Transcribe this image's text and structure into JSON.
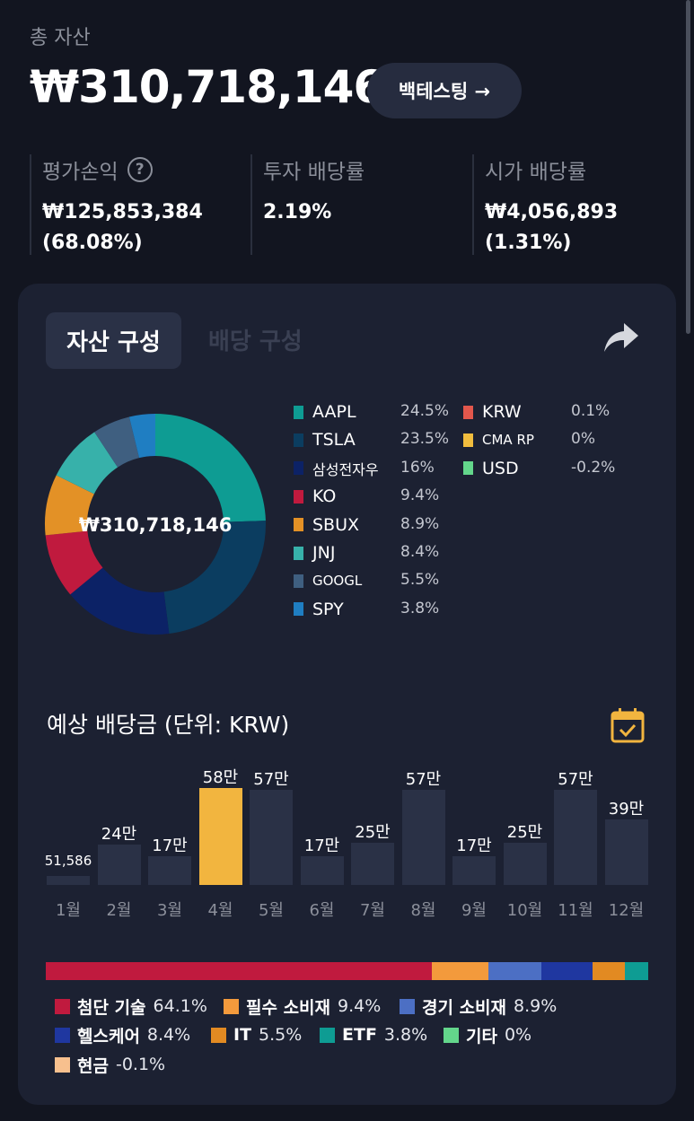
{
  "header": {
    "total_label": "총 자산",
    "total_value": "₩310,718,146",
    "backtest_label": "백테스팅 →"
  },
  "stats": [
    {
      "label": "평가손익",
      "has_help": true,
      "value_line1": "₩125,853,384",
      "value_line2": "(68.08%)"
    },
    {
      "label": "투자 배당률",
      "has_help": false,
      "value_line1": "2.19%",
      "value_line2": ""
    },
    {
      "label": "시가 배당률",
      "has_help": false,
      "value_line1": "₩4,056,893",
      "value_line2": "(1.31%)"
    }
  ],
  "tabs": {
    "active": "자산 구성",
    "inactive": "배당 구성"
  },
  "asset_allocation": {
    "center_label": "₩310,718,146",
    "holdings": [
      {
        "name": "AAPL",
        "pct": "24.5%",
        "value": 24.5,
        "color": "#0e9c93"
      },
      {
        "name": "TSLA",
        "pct": "23.5%",
        "value": 23.5,
        "color": "#0b3d60"
      },
      {
        "name": "삼성전자우",
        "pct": "16%",
        "value": 16,
        "color": "#0c2266"
      },
      {
        "name": "KO",
        "pct": "9.4%",
        "value": 9.4,
        "color": "#c01a3e"
      },
      {
        "name": "SBUX",
        "pct": "8.9%",
        "value": 8.9,
        "color": "#e39126"
      },
      {
        "name": "JNJ",
        "pct": "8.4%",
        "value": 8.4,
        "color": "#37b1aa"
      },
      {
        "name": "GOOGL",
        "pct": "5.5%",
        "value": 5.5,
        "color": "#3f5f80"
      },
      {
        "name": "SPY",
        "pct": "3.8%",
        "value": 3.8,
        "color": "#1f7ec2"
      },
      {
        "name": "KRW",
        "pct": "0.1%",
        "value": 0.1,
        "color": "#e2574c"
      },
      {
        "name": "CMA RP",
        "pct": "0%",
        "value": 0,
        "color": "#f1bd3e"
      },
      {
        "name": "USD",
        "pct": "-0.2%",
        "value": -0.2,
        "color": "#63d68b"
      }
    ]
  },
  "dividends": {
    "title": "예상 배당금 (단위: KRW)",
    "months": [
      {
        "month": "1월",
        "label": "51,586",
        "value": 51586
      },
      {
        "month": "2월",
        "label": "24만",
        "value": 240000
      },
      {
        "month": "3월",
        "label": "17만",
        "value": 170000
      },
      {
        "month": "4월",
        "label": "58만",
        "value": 580000,
        "highlight": true
      },
      {
        "month": "5월",
        "label": "57만",
        "value": 570000
      },
      {
        "month": "6월",
        "label": "17만",
        "value": 170000
      },
      {
        "month": "7월",
        "label": "25만",
        "value": 250000
      },
      {
        "month": "8월",
        "label": "57만",
        "value": 570000
      },
      {
        "month": "9월",
        "label": "17만",
        "value": 170000
      },
      {
        "month": "10월",
        "label": "25만",
        "value": 250000
      },
      {
        "month": "11월",
        "label": "57만",
        "value": 570000
      },
      {
        "month": "12월",
        "label": "39만",
        "value": 390000
      }
    ]
  },
  "sectors": [
    {
      "name": "첨단 기술",
      "pct": "64.1%",
      "value": 64.1,
      "color": "#c01a3e"
    },
    {
      "name": "필수 소비재",
      "pct": "9.4%",
      "value": 9.4,
      "color": "#f39a3c"
    },
    {
      "name": "경기 소비재",
      "pct": "8.9%",
      "value": 8.9,
      "color": "#4c6fc4"
    },
    {
      "name": "헬스케어",
      "pct": "8.4%",
      "value": 8.4,
      "color": "#1f37a0"
    },
    {
      "name": "IT",
      "pct": "5.5%",
      "value": 5.5,
      "color": "#e28a22"
    },
    {
      "name": "ETF",
      "pct": "3.8%",
      "value": 3.8,
      "color": "#0e9c93"
    },
    {
      "name": "기타",
      "pct": "0%",
      "value": 0,
      "color": "#63d68b"
    },
    {
      "name": "현금",
      "pct": "-0.1%",
      "value": -0.1,
      "color": "#f7c08e"
    }
  ]
}
